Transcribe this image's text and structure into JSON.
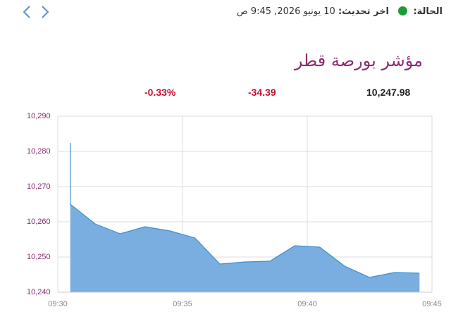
{
  "header": {
    "status_label": "الحالة:",
    "update_label": "اخر تحديث:",
    "update_value": "10 يونيو 2026, 9:45 ص"
  },
  "quote": {
    "last": "10,247.98",
    "change": "-34.39",
    "change_pct": "-0.33%"
  },
  "chart_data": {
    "type": "area",
    "title": "مؤشر بورصة قطر",
    "color": "#3d8fcf",
    "fill": "#7aaee0",
    "x": [
      570.5,
      570.5,
      571.5,
      572.5,
      573.5,
      574.5,
      575.5,
      576.5,
      577.5,
      578.5,
      579.5,
      580.5,
      581.5,
      582.5,
      583.5,
      584.5
    ],
    "values": [
      10282.4,
      10265,
      10259.4,
      10256.6,
      10258.6,
      10257.4,
      10255.4,
      10248,
      10248.6,
      10248.8,
      10253.2,
      10252.8,
      10247.4,
      10244.2,
      10245.6,
      10245.4
    ],
    "xlim": [
      570,
      585
    ],
    "xticks": [
      {
        "value": 570,
        "label": "09:30"
      },
      {
        "value": 575,
        "label": "09:35"
      },
      {
        "value": 580,
        "label": "09:40"
      },
      {
        "value": 585,
        "label": "09:45"
      }
    ],
    "ylim": [
      10240,
      10290
    ],
    "yticks": [
      {
        "value": 10240,
        "label": "10,240"
      },
      {
        "value": 10250,
        "label": "10,250"
      },
      {
        "value": 10260,
        "label": "10,260"
      },
      {
        "value": 10270,
        "label": "10,270"
      },
      {
        "value": 10280,
        "label": "10,280"
      },
      {
        "value": 10290,
        "label": "10,290"
      }
    ],
    "grid": true
  }
}
